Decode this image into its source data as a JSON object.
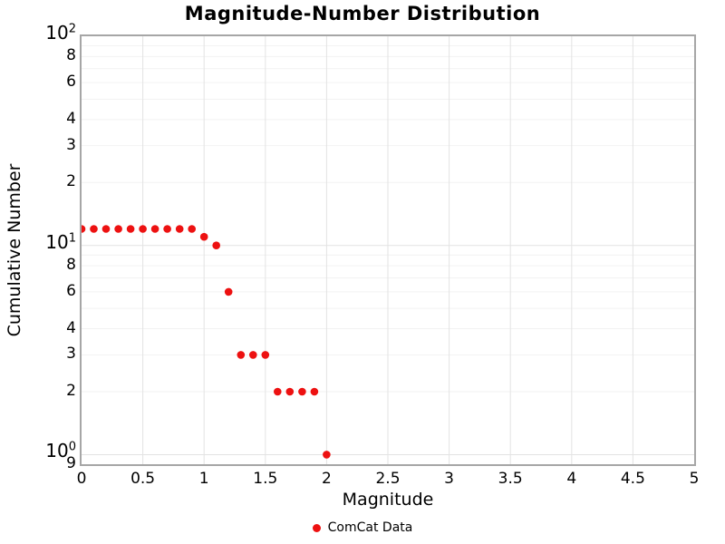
{
  "chart_data": {
    "type": "scatter",
    "title": "Magnitude-Number Distribution",
    "xlabel": "Magnitude",
    "ylabel": "Cumulative Number",
    "yscale": "log",
    "xlim": [
      0,
      5
    ],
    "ylim": [
      0.9,
      100
    ],
    "grid": true,
    "legend_position": "bottom-center",
    "series": [
      {
        "name": "ComCat Data",
        "marker": "circle",
        "color": "#ed1111",
        "x": [
          0.0,
          0.1,
          0.2,
          0.3,
          0.4,
          0.5,
          0.6,
          0.7,
          0.8,
          0.9,
          1.0,
          1.1,
          1.2,
          1.3,
          1.4,
          1.5,
          1.6,
          1.7,
          1.8,
          1.9,
          2.0
        ],
        "y": [
          12,
          12,
          12,
          12,
          12,
          12,
          12,
          12,
          12,
          12,
          11,
          10,
          6,
          3,
          3,
          3,
          2,
          2,
          2,
          2,
          1
        ]
      }
    ],
    "x_ticks": [
      {
        "v": 0,
        "label": "0"
      },
      {
        "v": 0.5,
        "label": "0.5"
      },
      {
        "v": 1,
        "label": "1"
      },
      {
        "v": 1.5,
        "label": "1.5"
      },
      {
        "v": 2,
        "label": "2"
      },
      {
        "v": 2.5,
        "label": "2.5"
      },
      {
        "v": 3,
        "label": "3"
      },
      {
        "v": 3.5,
        "label": "3.5"
      },
      {
        "v": 4,
        "label": "4"
      },
      {
        "v": 4.5,
        "label": "4.5"
      },
      {
        "v": 5,
        "label": "5"
      }
    ],
    "y_major_ticks": [
      {
        "v": 100,
        "mantissa": "10",
        "exp": "2"
      },
      {
        "v": 10,
        "mantissa": "10",
        "exp": "1"
      },
      {
        "v": 1,
        "mantissa": "10",
        "exp": "0"
      }
    ],
    "y_minor_ticks": [
      {
        "v": 80,
        "label": "8"
      },
      {
        "v": 60,
        "label": "6"
      },
      {
        "v": 40,
        "label": "4"
      },
      {
        "v": 30,
        "label": "3"
      },
      {
        "v": 20,
        "label": "2"
      },
      {
        "v": 8,
        "label": "8"
      },
      {
        "v": 6,
        "label": "6"
      },
      {
        "v": 4,
        "label": "4"
      },
      {
        "v": 3,
        "label": "3"
      },
      {
        "v": 2,
        "label": "2"
      },
      {
        "v": 0.9,
        "label": "9"
      }
    ],
    "x_gridlines": [
      0.5,
      1,
      1.5,
      2,
      2.5,
      3,
      3.5,
      4,
      4.5
    ],
    "y_major_gridlines": [
      1,
      10
    ],
    "y_minor_gridlines": [
      2,
      3,
      4,
      5,
      6,
      7,
      8,
      9,
      20,
      30,
      40,
      50,
      60,
      70,
      80,
      90
    ],
    "colors": {
      "marker": "#ed1111",
      "grid_major": "#e3e3e3",
      "grid_minor": "#f2f2f2",
      "axis_border": "#a6a6a6",
      "text": "#000000",
      "background": "#ffffff"
    },
    "legend": [
      {
        "name": "ComCat Data",
        "color": "#ed1111"
      }
    ]
  }
}
